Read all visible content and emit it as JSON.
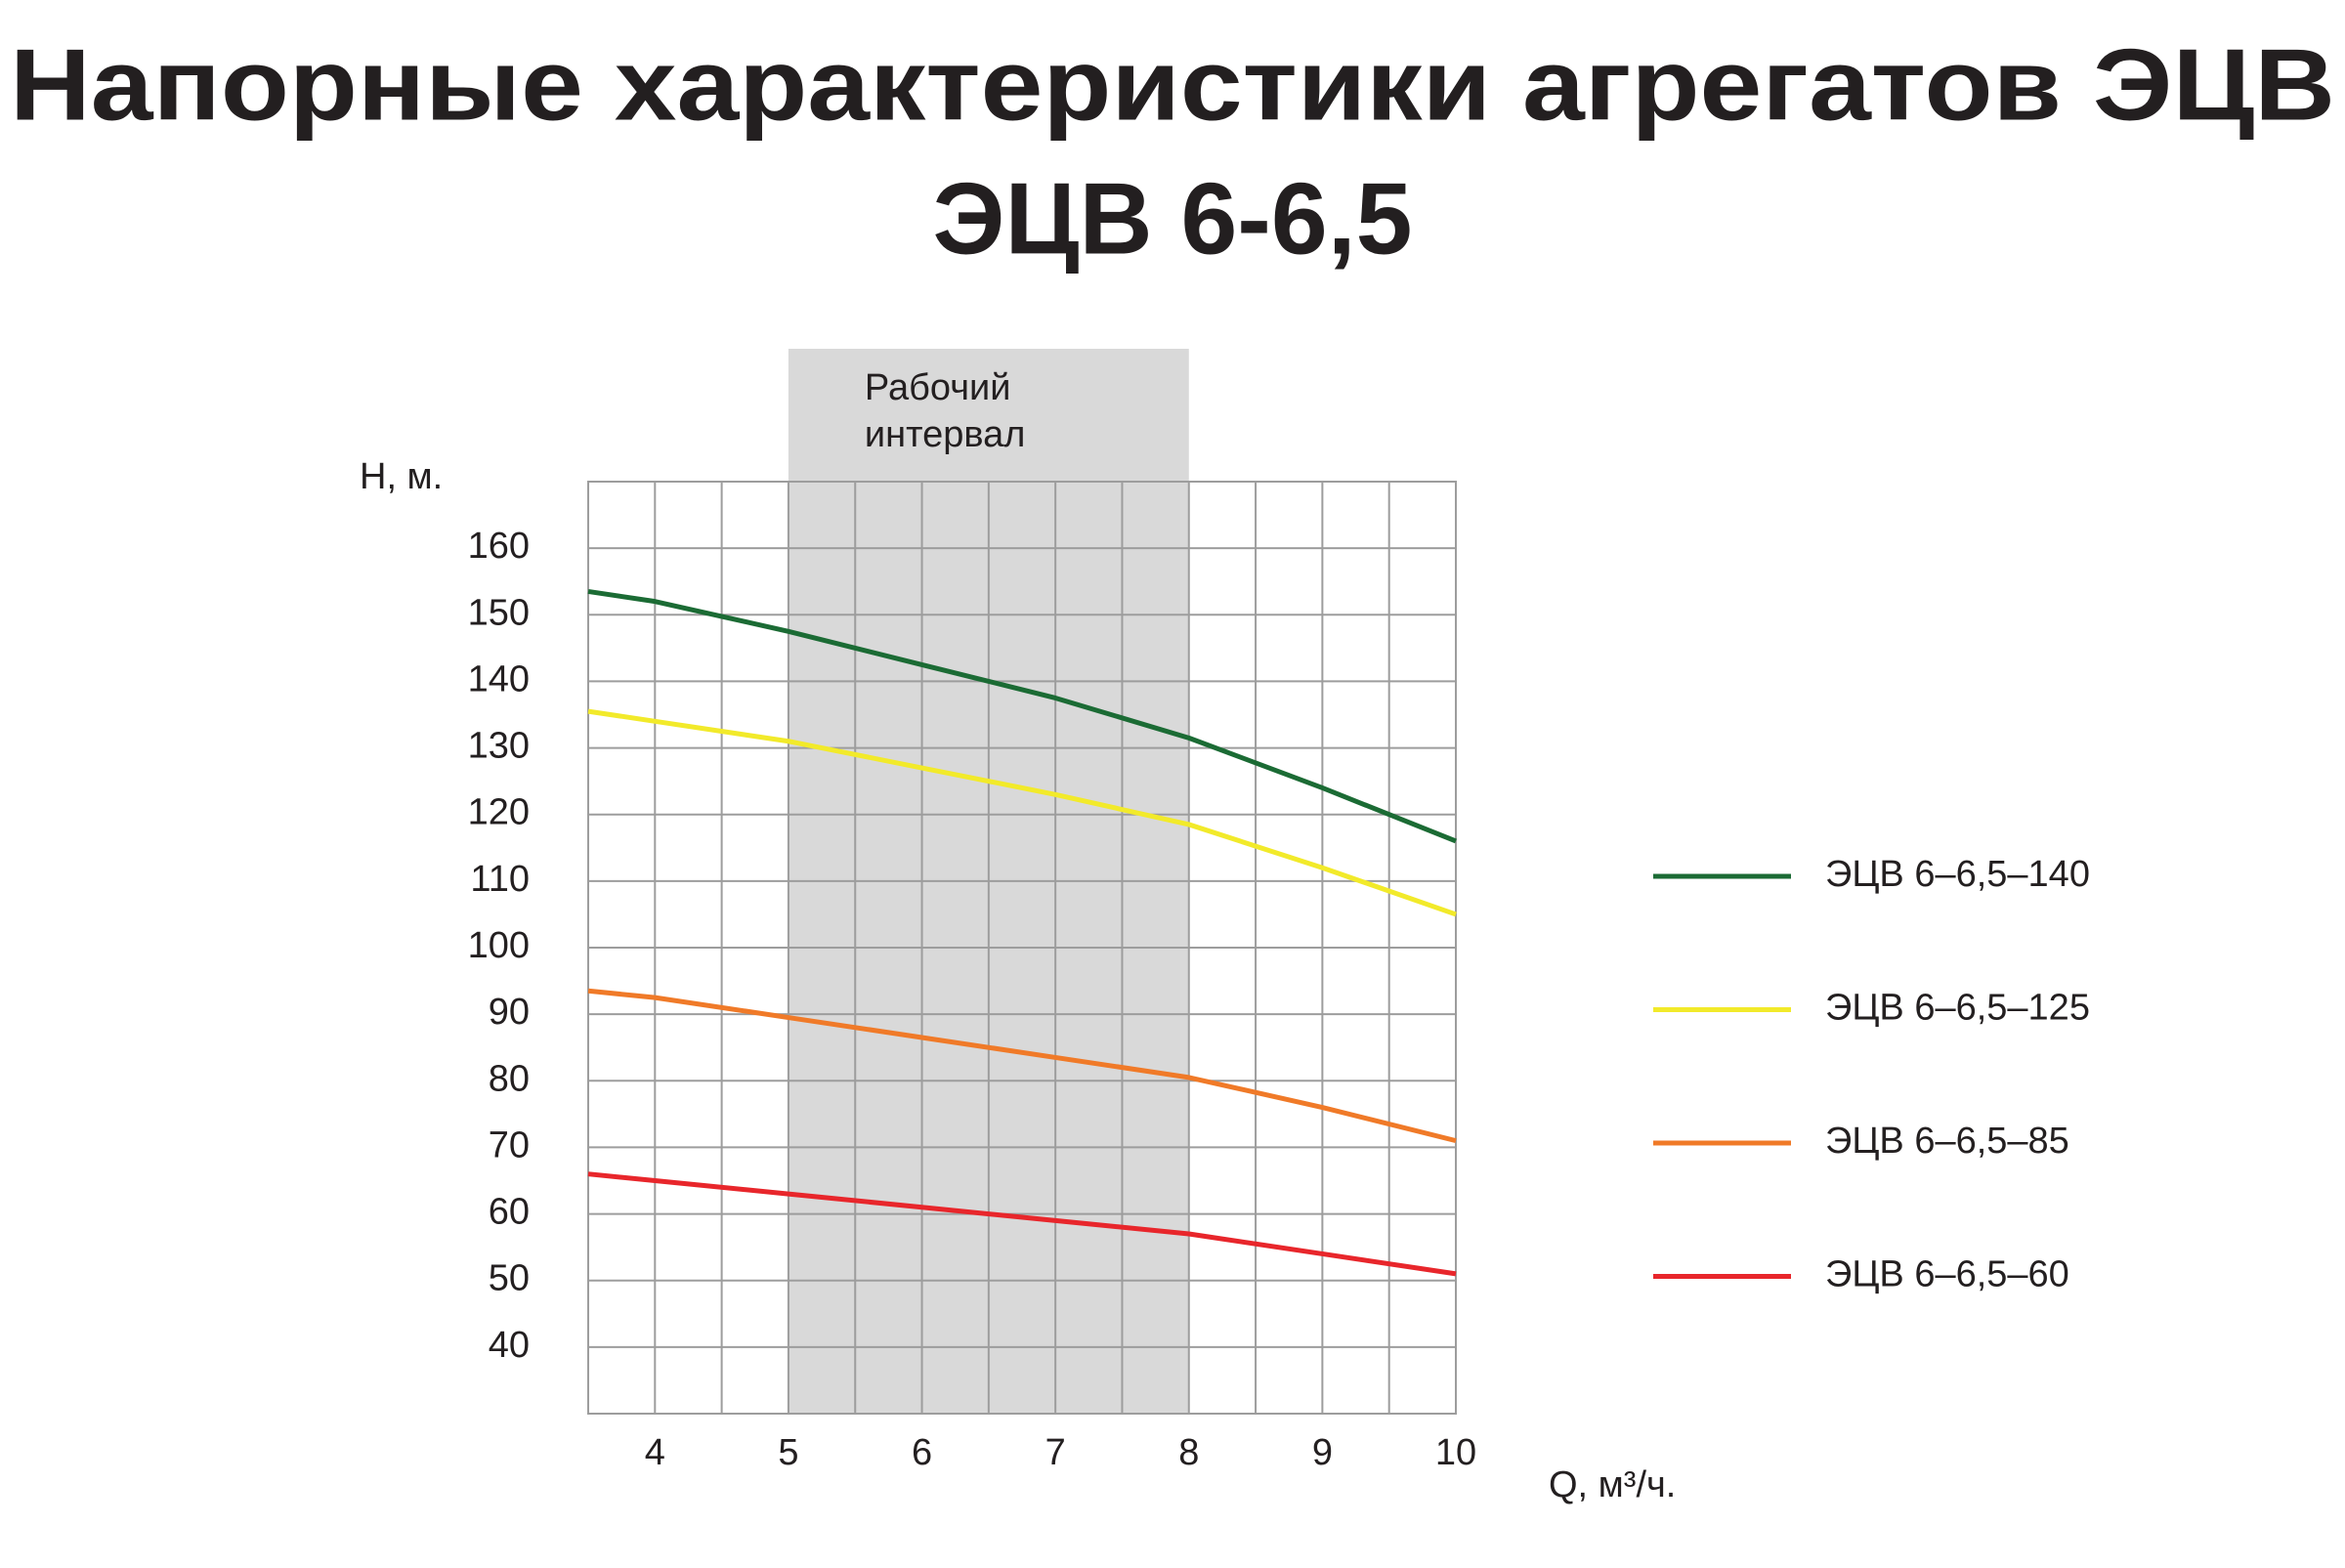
{
  "chart_data": {
    "type": "line",
    "title": "Напорные характеристики агрегатов ЭЦВ",
    "subtitle": "ЭЦВ 6-6,5",
    "y_label": "H, м.",
    "x_label": "Q, м³/ч.",
    "annotation": {
      "lines": [
        "Рабочий",
        "интервал"
      ],
      "x_range": [
        5,
        8
      ],
      "color": "#d9d9d9"
    },
    "x": [
      3.5,
      4,
      5,
      6,
      7,
      8,
      9,
      10
    ],
    "series": [
      {
        "name": "ЭЦВ 6–6,5–140",
        "color": "#1b6b34",
        "values": [
          153.5,
          152,
          147.5,
          142.5,
          137.5,
          131.5,
          124,
          116
        ]
      },
      {
        "name": "ЭЦВ 6–6,5–125",
        "color": "#f2ea2a",
        "values": [
          135.5,
          134,
          131,
          127,
          123,
          118.5,
          112,
          105
        ]
      },
      {
        "name": "ЭЦВ 6–6,5–85",
        "color": "#f07a28",
        "values": [
          93.5,
          92.5,
          89.5,
          86.5,
          83.5,
          80.5,
          76,
          71
        ]
      },
      {
        "name": "ЭЦВ 6–6,5–60",
        "color": "#e8262b",
        "values": [
          66,
          65,
          63,
          61,
          59,
          57,
          54,
          51
        ]
      }
    ],
    "xlim": [
      3.5,
      10
    ],
    "ylim": [
      30,
      170
    ],
    "xticks": [
      4,
      5,
      6,
      7,
      8,
      9,
      10
    ],
    "yticks": [
      40,
      50,
      60,
      70,
      80,
      90,
      100,
      110,
      120,
      130,
      140,
      150,
      160
    ],
    "grid": true,
    "legend": "right"
  }
}
